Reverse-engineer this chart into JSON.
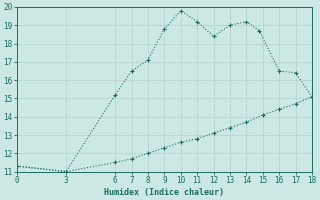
{
  "xlabel": "Humidex (Indice chaleur)",
  "ylabel": "",
  "xlim": [
    0,
    18
  ],
  "ylim": [
    11,
    20
  ],
  "xticks": [
    0,
    3,
    6,
    7,
    8,
    9,
    10,
    11,
    12,
    13,
    14,
    15,
    16,
    17,
    18
  ],
  "yticks": [
    11,
    12,
    13,
    14,
    15,
    16,
    17,
    18,
    19,
    20
  ],
  "bg_color": "#cce8e4",
  "line_color": "#1a6b5e",
  "grid_color": "#b8d4d0",
  "curve_x": [
    0,
    3,
    6,
    7,
    8,
    9,
    10,
    11,
    12,
    13,
    14,
    14.8,
    16,
    17,
    18
  ],
  "curve_y": [
    11.3,
    11.0,
    15.2,
    16.5,
    17.1,
    18.8,
    19.8,
    19.2,
    18.4,
    19.0,
    19.2,
    18.7,
    16.5,
    16.4,
    15.1
  ],
  "lower_x": [
    0,
    3,
    6,
    7,
    8,
    9,
    10,
    11,
    12,
    13,
    14,
    15,
    16,
    17,
    18
  ],
  "lower_y": [
    11.3,
    11.0,
    11.5,
    11.7,
    12.0,
    12.3,
    12.6,
    12.8,
    13.1,
    13.4,
    13.7,
    14.1,
    14.4,
    14.7,
    15.1
  ]
}
